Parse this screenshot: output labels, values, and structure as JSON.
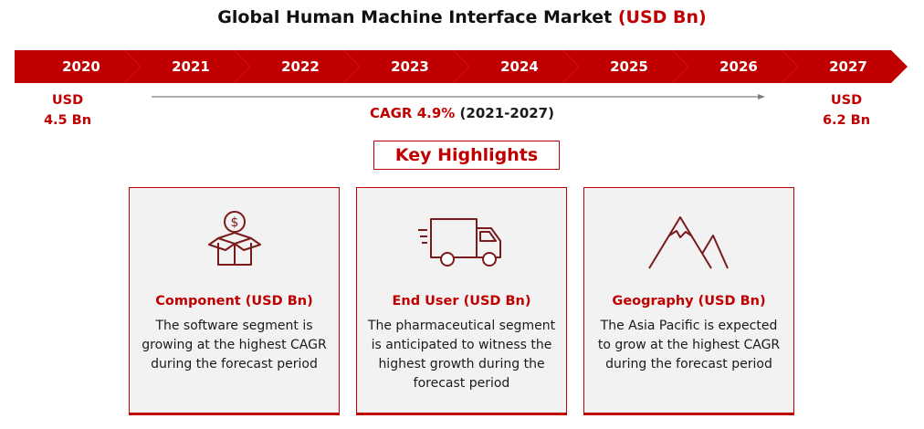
{
  "title": {
    "main": "Global Human Machine Interface Market",
    "accent": "(USD Bn)"
  },
  "timeline": {
    "years": [
      "2020",
      "2021",
      "2022",
      "2023",
      "2024",
      "2025",
      "2026",
      "2027"
    ],
    "start_value": {
      "line1": "USD",
      "line2": "4.5 Bn"
    },
    "end_value": {
      "line1": "USD",
      "line2": "6.2 Bn"
    },
    "cagr_label": "CAGR 4.9%",
    "cagr_period": "(2021-2027)"
  },
  "key_highlights": "Key Highlights",
  "cards": [
    {
      "icon": "money-box-icon",
      "title": "Component (USD Bn)",
      "desc": "The software segment is growing at the highest CAGR during the forecast period"
    },
    {
      "icon": "delivery-truck-icon",
      "title": "End User (USD Bn)",
      "desc": "The pharmaceutical segment is anticipated to witness the highest growth during the forecast period"
    },
    {
      "icon": "mountain-icon",
      "title": "Geography (USD Bn)",
      "desc": "The Asia Pacific is expected to grow at the highest CAGR during the forecast period"
    }
  ],
  "colors": {
    "accent": "#c00000",
    "card_bg": "#f2f2f2"
  }
}
